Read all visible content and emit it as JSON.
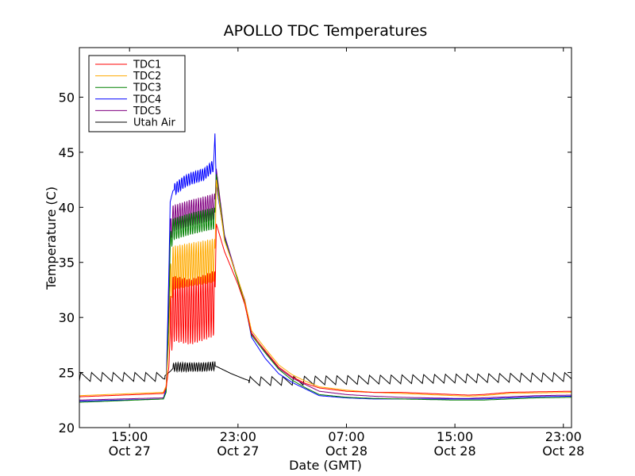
{
  "chart_data": {
    "type": "line",
    "title": "APOLLO TDC Temperatures",
    "xlabel": "Date (GMT)",
    "ylabel": "Temperature (C)",
    "x_unit": "hours since Oct 27 00:00 GMT",
    "xlim": [
      11.3,
      47.6
    ],
    "ylim": [
      20,
      54.5
    ],
    "yticks": [
      20,
      25,
      30,
      35,
      40,
      45,
      50
    ],
    "xticks": [
      {
        "x": 15,
        "label_time": "15:00",
        "label_date": "Oct 27"
      },
      {
        "x": 23,
        "label_time": "23:00",
        "label_date": "Oct 27"
      },
      {
        "x": 31,
        "label_time": "07:00",
        "label_date": "Oct 28"
      },
      {
        "x": 39,
        "label_time": "15:00",
        "label_date": "Oct 28"
      },
      {
        "x": 47,
        "label_time": "23:00",
        "label_date": "Oct 28"
      }
    ],
    "legend_position": "top-left",
    "grid": false,
    "series": [
      {
        "name": "TDC1",
        "color": "#ff0000",
        "x": [
          11.3,
          17.5,
          17.7,
          17.9,
          18.0,
          18.2,
          19.5,
          20.5,
          21.3,
          21.4,
          22.0,
          23.0,
          23.5,
          24.0,
          25.0,
          26.0,
          27.0,
          28.0,
          29.0,
          31.0,
          33.0,
          35.0,
          37.0,
          39.0,
          40.0,
          41.0,
          43.0,
          45.0,
          47.6
        ],
        "y": [
          22.8,
          23.1,
          23.6,
          25.5,
          28.5,
          30.8,
          30.5,
          30.9,
          31.3,
          38.5,
          36.0,
          33.0,
          31.2,
          28.5,
          27.0,
          25.5,
          24.6,
          24.0,
          23.6,
          23.3,
          23.2,
          23.2,
          23.1,
          23.0,
          22.95,
          23.0,
          23.2,
          23.25,
          23.3
        ],
        "osc": {
          "from": 18.0,
          "to": 21.3,
          "period": 0.17,
          "amp": 3.0
        }
      },
      {
        "name": "TDC2",
        "color": "#ffaa00",
        "x": [
          11.3,
          17.5,
          17.7,
          17.9,
          18.0,
          18.2,
          19.5,
          20.5,
          21.3,
          21.4,
          22.0,
          23.0,
          23.5,
          24.0,
          25.0,
          26.0,
          27.0,
          28.0,
          29.0,
          31.0,
          33.0,
          35.0,
          37.0,
          39.0,
          40.0,
          41.0,
          43.0,
          45.0,
          47.6
        ],
        "y": [
          22.9,
          23.2,
          23.8,
          28.0,
          32.5,
          34.5,
          34.8,
          35.0,
          35.2,
          42.5,
          37.0,
          33.5,
          31.5,
          28.8,
          27.2,
          25.7,
          24.8,
          24.2,
          23.7,
          23.4,
          23.2,
          23.1,
          23.0,
          22.9,
          22.85,
          22.9,
          23.1,
          23.15,
          23.2
        ],
        "osc": {
          "from": 18.0,
          "to": 21.3,
          "period": 0.17,
          "amp": 2.0
        }
      },
      {
        "name": "TDC3",
        "color": "#008000",
        "x": [
          11.3,
          17.5,
          17.7,
          17.9,
          18.0,
          18.2,
          19.5,
          20.5,
          21.3,
          21.4,
          22.0,
          23.0,
          23.5,
          24.0,
          25.0,
          26.0,
          27.0,
          28.0,
          29.0,
          31.0,
          33.0,
          35.0,
          37.0,
          39.0,
          40.0,
          41.0,
          43.0,
          45.0,
          47.6
        ],
        "y": [
          22.3,
          22.6,
          23.2,
          30.0,
          36.5,
          38.0,
          38.5,
          38.8,
          39.0,
          43.0,
          37.2,
          33.3,
          31.3,
          28.4,
          26.8,
          25.3,
          24.3,
          23.6,
          23.0,
          22.75,
          22.65,
          22.6,
          22.55,
          22.5,
          22.5,
          22.5,
          22.6,
          22.7,
          22.75
        ],
        "osc": {
          "from": 18.0,
          "to": 21.3,
          "period": 0.17,
          "amp": 1.0
        }
      },
      {
        "name": "TDC4",
        "color": "#0000ff",
        "x": [
          11.3,
          17.5,
          17.7,
          17.9,
          18.0,
          18.2,
          19.0,
          19.5,
          20.5,
          21.2,
          21.3,
          21.4,
          22.0,
          23.0,
          23.5,
          24.0,
          25.0,
          26.0,
          27.0,
          28.0,
          29.0,
          31.0,
          33.0,
          35.0,
          37.0,
          39.0,
          40.0,
          41.0,
          43.0,
          45.0,
          47.6
        ],
        "y": [
          22.4,
          22.6,
          23.5,
          34.0,
          40.5,
          41.5,
          42.3,
          42.6,
          43.0,
          43.8,
          46.7,
          42.0,
          37.3,
          33.3,
          31.4,
          28.2,
          26.3,
          24.9,
          24.1,
          23.5,
          22.9,
          22.7,
          22.6,
          22.6,
          22.6,
          22.6,
          22.6,
          22.6,
          22.7,
          22.8,
          22.85
        ],
        "osc": {
          "from": 18.3,
          "to": 21.2,
          "period": 0.17,
          "amp": 0.55
        }
      },
      {
        "name": "TDC5",
        "color": "#800080",
        "x": [
          11.3,
          17.5,
          17.7,
          17.9,
          18.0,
          18.2,
          19.5,
          20.5,
          21.3,
          21.4,
          22.0,
          23.0,
          23.5,
          24.0,
          25.0,
          26.0,
          27.0,
          28.0,
          29.0,
          31.0,
          33.0,
          35.0,
          37.0,
          39.0,
          40.0,
          41.0,
          43.0,
          45.0,
          47.6
        ],
        "y": [
          22.5,
          22.7,
          23.5,
          31.5,
          37.5,
          39.0,
          39.5,
          39.8,
          40.1,
          43.5,
          37.5,
          33.4,
          31.6,
          28.6,
          26.9,
          25.4,
          24.5,
          23.9,
          23.3,
          23.0,
          22.85,
          22.75,
          22.7,
          22.65,
          22.65,
          22.7,
          22.8,
          22.9,
          22.95
        ],
        "osc": {
          "from": 18.0,
          "to": 21.3,
          "period": 0.17,
          "amp": 1.2
        }
      },
      {
        "name": "Utah Air",
        "color": "#000000",
        "x": [
          11.3,
          17.5,
          17.7,
          18.0,
          18.3,
          19.5,
          20.5,
          21.3,
          21.5,
          22.5,
          23.5,
          24.0,
          47.6
        ],
        "y": [
          24.6,
          24.6,
          24.8,
          25.1,
          25.5,
          25.5,
          25.5,
          25.6,
          25.5,
          24.9,
          24.4,
          24.2,
          24.6
        ],
        "osc": {
          "from": 18.2,
          "to": 21.3,
          "period": 0.17,
          "amp": 0.4
        },
        "saw": [
          {
            "from": 11.3,
            "to": 17.6,
            "period": 0.8,
            "amp": 0.8
          },
          {
            "from": 23.8,
            "to": 47.6,
            "period": 0.8,
            "amp": 0.8
          }
        ]
      }
    ]
  }
}
